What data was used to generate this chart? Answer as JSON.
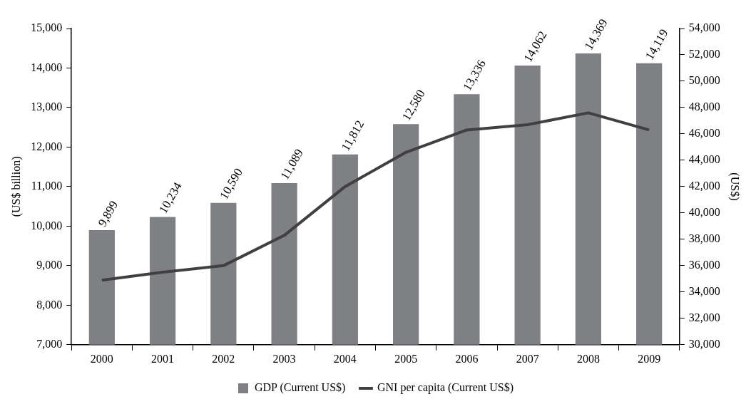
{
  "chart_data": {
    "type": "bar",
    "categories": [
      "2000",
      "2001",
      "2002",
      "2003",
      "2004",
      "2005",
      "2006",
      "2007",
      "2008",
      "2009"
    ],
    "ylabel": "(US$ billion)",
    "y2label": "(US$)",
    "ylim": [
      7000,
      15000
    ],
    "yticks": [
      {
        "value": 7000,
        "label": "7,000"
      },
      {
        "value": 8000,
        "label": "8,000"
      },
      {
        "value": 9000,
        "label": "9,000"
      },
      {
        "value": 10000,
        "label": "10,000"
      },
      {
        "value": 11000,
        "label": "11,000"
      },
      {
        "value": 12000,
        "label": "12,000"
      },
      {
        "value": 13000,
        "label": "13,000"
      },
      {
        "value": 14000,
        "label": "14,000"
      },
      {
        "value": 15000,
        "label": "15,000"
      }
    ],
    "y2lim": [
      30000,
      54000
    ],
    "y2ticks": [
      {
        "value": 30000,
        "label": "30,000"
      },
      {
        "value": 32000,
        "label": "32,000"
      },
      {
        "value": 34000,
        "label": "34,000"
      },
      {
        "value": 36000,
        "label": "36,000"
      },
      {
        "value": 38000,
        "label": "38,000"
      },
      {
        "value": 40000,
        "label": "40,000"
      },
      {
        "value": 42000,
        "label": "42,000"
      },
      {
        "value": 44000,
        "label": "44,000"
      },
      {
        "value": 46000,
        "label": "46,000"
      },
      {
        "value": 48000,
        "label": "48,000"
      },
      {
        "value": 50000,
        "label": "50,000"
      },
      {
        "value": 52000,
        "label": "52,000"
      },
      {
        "value": 54000,
        "label": "54,000"
      }
    ],
    "series": [
      {
        "name": "GDP (Current US$)",
        "color": "#7f8084",
        "values": [
          9899,
          10234,
          10590,
          11089,
          11812,
          12580,
          13336,
          14062,
          14369,
          14119
        ],
        "value_labels": [
          "9,899",
          "10,234",
          "10,590",
          "11,089",
          "11,812",
          "12,580",
          "13,336",
          "14,062",
          "14,369",
          "14,119"
        ]
      },
      {
        "name": "GNI per capita (Current US$)",
        "type": "line",
        "axis": "y2",
        "color": "#404040",
        "values": [
          34900,
          35500,
          36000,
          38300,
          42000,
          44600,
          46300,
          46700,
          47600,
          46300
        ]
      }
    ],
    "grid": false,
    "legend": "bottom",
    "marker": "none",
    "line_style": "solid"
  }
}
